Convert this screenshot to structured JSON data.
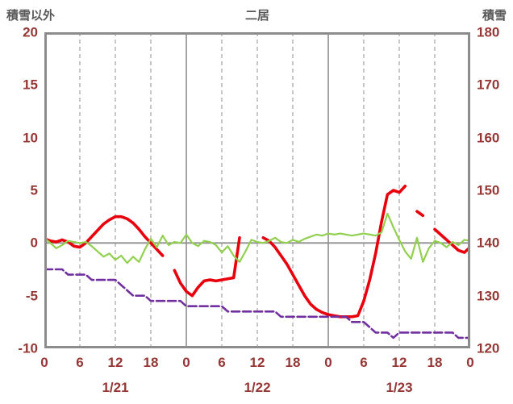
{
  "chart_data": {
    "type": "line",
    "title": "二居",
    "left_axis": {
      "label": "積雪以外",
      "min": -10,
      "max": 20,
      "ticks": [
        20,
        15,
        10,
        5,
        0,
        -5,
        -10
      ]
    },
    "right_axis": {
      "label": "積雪",
      "min": 120,
      "max": 180,
      "ticks": [
        180,
        170,
        160,
        150,
        140,
        130,
        120
      ]
    },
    "x_axis": {
      "unit": "hour",
      "min": 0,
      "max": 72,
      "tick_hours": [
        0,
        6,
        12,
        18,
        24,
        30,
        36,
        42,
        48,
        54,
        60,
        66,
        72
      ],
      "tick_labels": [
        "0",
        "6",
        "12",
        "18",
        "0",
        "6",
        "12",
        "18",
        "0",
        "6",
        "12",
        "18",
        "0"
      ],
      "day_boundary_hours": [
        24,
        48
      ],
      "date_labels": [
        {
          "label": "1/21",
          "hour": 12
        },
        {
          "label": "1/22",
          "hour": 36
        },
        {
          "label": "1/23",
          "hour": 60
        }
      ]
    },
    "grid": {
      "vertical_dashed": true,
      "horizontal_zero_line": true,
      "legend": "none"
    },
    "series": [
      {
        "name": "red",
        "color": "#e8000d",
        "axis": "left",
        "width": 3.6,
        "dash": null,
        "x_step": 1,
        "values": [
          0.4,
          0.2,
          0.1,
          0.3,
          0.1,
          -0.3,
          -0.4,
          0.0,
          0.6,
          1.2,
          1.8,
          2.2,
          2.5,
          2.5,
          2.3,
          1.9,
          1.3,
          0.6,
          0.0,
          -0.6,
          -1.2,
          null,
          -2.6,
          -3.8,
          -4.6,
          -5.0,
          -4.2,
          -3.6,
          -3.5,
          -3.6,
          -3.5,
          -3.4,
          -3.3,
          0.5,
          null,
          null,
          null,
          0.5,
          0.2,
          -0.4,
          -1.2,
          -2.0,
          -3.0,
          -4.0,
          -5.0,
          -5.8,
          -6.3,
          -6.6,
          -6.8,
          -6.9,
          -7.0,
          -7.0,
          -7.0,
          -6.9,
          -5.5,
          -3.5,
          -1.0,
          2.0,
          4.6,
          5.0,
          4.8,
          5.4,
          null,
          3.0,
          2.6,
          null,
          1.3,
          0.8,
          0.3,
          -0.2,
          -0.7,
          -0.9,
          -0.4
        ]
      },
      {
        "name": "green",
        "color": "#92d050",
        "axis": "left",
        "width": 2.2,
        "dash": null,
        "x_step": 1,
        "values": [
          0.5,
          0.0,
          -0.5,
          -0.2,
          0.2,
          0.1,
          0.0,
          0.1,
          -0.3,
          -0.8,
          -1.3,
          -1.0,
          -1.6,
          -1.2,
          -1.9,
          -1.3,
          -1.8,
          -0.6,
          0.4,
          -0.4,
          0.7,
          -0.2,
          0.1,
          0.0,
          0.8,
          0.0,
          -0.3,
          0.2,
          0.1,
          -0.2,
          -0.9,
          -0.3,
          -1.2,
          -1.8,
          -0.8,
          0.3,
          0.1,
          0.0,
          0.2,
          0.5,
          0.1,
          0.0,
          0.3,
          0.1,
          0.4,
          0.6,
          0.8,
          0.7,
          0.9,
          0.8,
          0.9,
          0.8,
          0.7,
          0.8,
          0.9,
          0.8,
          0.7,
          1.0,
          2.8,
          1.5,
          0.3,
          -0.8,
          -1.5,
          0.5,
          -1.8,
          -0.5,
          0.2,
          0.0,
          -0.4,
          0.1,
          -0.2,
          0.3,
          0.2
        ]
      },
      {
        "name": "purple",
        "color": "#7030a0",
        "axis": "right",
        "width": 2.6,
        "dash": "10,4",
        "x_step": 1,
        "values": [
          135,
          135,
          135,
          135,
          134,
          134,
          134,
          134,
          133,
          133,
          133,
          133,
          133,
          132,
          131,
          130,
          130,
          130,
          129,
          129,
          129,
          129,
          129,
          129,
          128,
          128,
          128,
          128,
          128,
          128,
          128,
          127,
          127,
          127,
          127,
          127,
          127,
          127,
          127,
          127,
          126,
          126,
          126,
          126,
          126,
          126,
          126,
          126,
          126,
          126,
          126,
          126,
          125,
          125,
          125,
          124,
          123,
          123,
          123,
          122,
          123,
          123,
          123,
          123,
          123,
          123,
          123,
          123,
          123,
          123,
          122,
          122,
          122
        ]
      }
    ]
  },
  "styles": {
    "tick_color": "#953735",
    "title_color": "#595959",
    "border_color": "#8c8c8c",
    "grid_dash_color": "#ababab",
    "day_line_color": "#9a9a9a",
    "zero_line_color": "#8f8f8f",
    "background": "#ffffff"
  }
}
